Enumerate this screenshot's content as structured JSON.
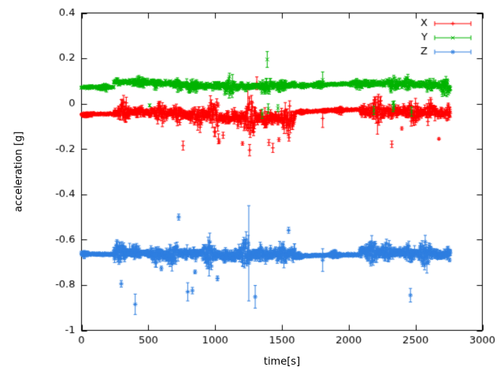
{
  "figure": {
    "background": "#ffffff",
    "border_color": "#000000",
    "tick_label_color": "#000000"
  },
  "chart_data": {
    "type": "scatter",
    "style": "points-with-errorbars",
    "title": "",
    "xlabel": "time[s]",
    "ylabel": "acceleration [g]",
    "xlim": [
      0,
      3000
    ],
    "ylim": [
      -1,
      0.4
    ],
    "xticks": [
      0,
      500,
      1000,
      1500,
      2000,
      2500,
      3000
    ],
    "yticks": [
      -1,
      -0.8,
      -0.6,
      -0.4,
      -0.2,
      0,
      0.2,
      0.4
    ],
    "ytick_labels": [
      "-1",
      "-0.8",
      "-0.6",
      "-0.4",
      "-0.2",
      "0",
      "0.2",
      "0.4"
    ],
    "grid": false,
    "legend": {
      "position": "top-right",
      "entries": [
        "X",
        "Y",
        "Z"
      ]
    },
    "x_range_of_data": [
      0,
      2760
    ],
    "sample_step_s": 2.5,
    "series": [
      {
        "name": "X",
        "color": "#ff0000",
        "marker": "plus",
        "seed": 101,
        "segments": [
          {
            "x0": 0,
            "x1": 240,
            "base": -0.052,
            "noise": 0.01,
            "err": 0.01
          },
          {
            "x0": 240,
            "x1": 700,
            "base": -0.045,
            "noise": 0.045,
            "err": 0.03
          },
          {
            "x0": 700,
            "x1": 1050,
            "base": -0.05,
            "noise": 0.06,
            "err": 0.038
          },
          {
            "x0": 1050,
            "x1": 1600,
            "base": -0.055,
            "noise": 0.065,
            "err": 0.042
          },
          {
            "x0": 1600,
            "x1": 2080,
            "base": -0.032,
            "noise": 0.012,
            "err": 0.01
          },
          {
            "x0": 2080,
            "x1": 2760,
            "base": -0.042,
            "noise": 0.052,
            "err": 0.034
          }
        ],
        "outliers": {
          "prob": 0.012,
          "magnitude": 0.1,
          "direction": -1
        },
        "spikes": [
          {
            "x": 1312,
            "y": 0.09,
            "err": 0.028
          },
          {
            "x": 1258,
            "y": -0.205,
            "err": 0.025
          },
          {
            "x": 1432,
            "y": -0.195,
            "err": 0.02
          },
          {
            "x": 760,
            "y": -0.185,
            "err": 0.02
          },
          {
            "x": 1805,
            "y": -0.065,
            "err": 0.04
          }
        ]
      },
      {
        "name": "Y",
        "color": "#00b400",
        "marker": "cross",
        "seed": 202,
        "segments": [
          {
            "x0": 0,
            "x1": 240,
            "base": 0.065,
            "noise": 0.01,
            "err": 0.012
          },
          {
            "x0": 240,
            "x1": 700,
            "base": 0.088,
            "noise": 0.026,
            "err": 0.018
          },
          {
            "x0": 700,
            "x1": 1600,
            "base": 0.085,
            "noise": 0.032,
            "err": 0.022
          },
          {
            "x0": 1600,
            "x1": 2080,
            "base": 0.08,
            "noise": 0.012,
            "err": 0.01
          },
          {
            "x0": 2080,
            "x1": 2760,
            "base": 0.082,
            "noise": 0.034,
            "err": 0.02
          }
        ],
        "outliers": {
          "prob": 0.008,
          "magnitude": 0.07,
          "direction": -1
        },
        "spikes": [
          {
            "x": 1390,
            "y": 0.195,
            "err": 0.035
          },
          {
            "x": 1352,
            "y": -0.045,
            "err": 0.02
          },
          {
            "x": 1470,
            "y": -0.02,
            "err": 0.015
          },
          {
            "x": 2188,
            "y": -0.03,
            "err": 0.018
          },
          {
            "x": 2332,
            "y": -0.02,
            "err": 0.015
          },
          {
            "x": 2470,
            "y": -0.035,
            "err": 0.02
          },
          {
            "x": 1805,
            "y": 0.105,
            "err": 0.035
          }
        ]
      },
      {
        "name": "Z",
        "color": "#2f7fe0",
        "marker": "star",
        "seed": 303,
        "segments": [
          {
            "x0": 0,
            "x1": 240,
            "base": -0.672,
            "noise": 0.009,
            "err": 0.01
          },
          {
            "x0": 240,
            "x1": 700,
            "base": -0.662,
            "noise": 0.042,
            "err": 0.032
          },
          {
            "x0": 700,
            "x1": 1050,
            "base": -0.655,
            "noise": 0.05,
            "err": 0.036
          },
          {
            "x0": 1050,
            "x1": 1600,
            "base": -0.662,
            "noise": 0.055,
            "err": 0.04
          },
          {
            "x0": 1600,
            "x1": 2080,
            "base": -0.675,
            "noise": 0.011,
            "err": 0.01
          },
          {
            "x0": 2080,
            "x1": 2760,
            "base": -0.66,
            "noise": 0.046,
            "err": 0.034
          }
        ],
        "outliers": {
          "prob": 0.012,
          "magnitude": 0.12,
          "direction": 0
        },
        "spikes": [
          {
            "x": 402,
            "y": -0.885,
            "err": 0.045
          },
          {
            "x": 1252,
            "y": -0.66,
            "err": 0.21
          },
          {
            "x": 1300,
            "y": -0.852,
            "err": 0.05
          },
          {
            "x": 795,
            "y": -0.83,
            "err": 0.04
          },
          {
            "x": 2462,
            "y": -0.845,
            "err": 0.03
          },
          {
            "x": 1805,
            "y": -0.69,
            "err": 0.05
          }
        ]
      }
    ]
  }
}
